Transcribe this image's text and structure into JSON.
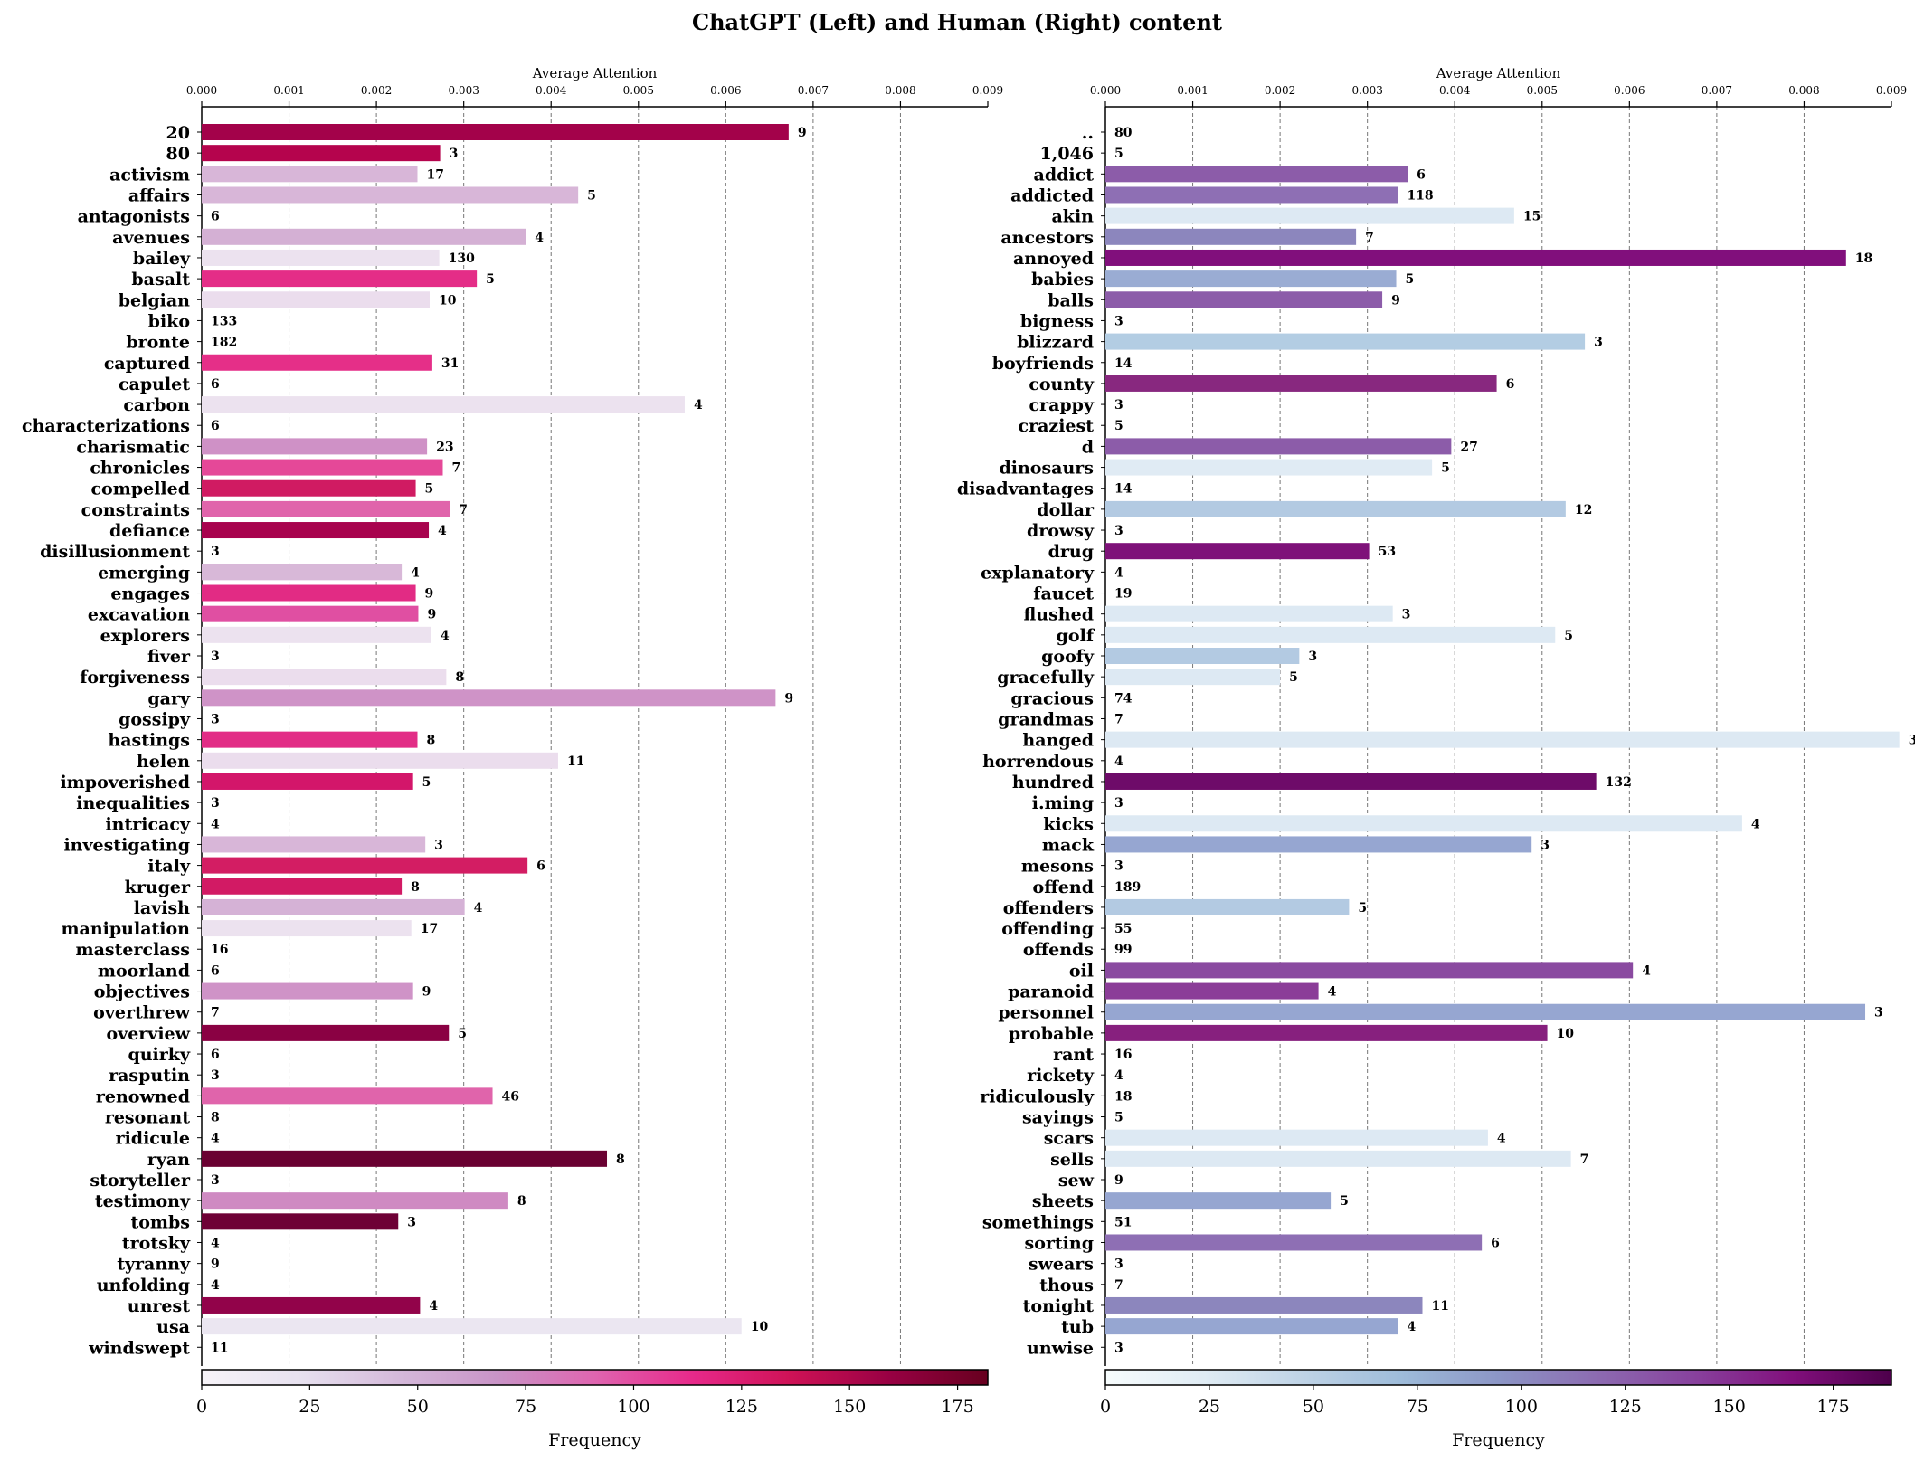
{
  "title": "ChatGPT (Left) and Human (Right) content",
  "chart_data": [
    {
      "type": "bar",
      "orientation": "horizontal",
      "panel": "ChatGPT (Left)",
      "xlabel": "Average Attention",
      "xlim": [
        0,
        0.009
      ],
      "x_ticks": [
        "0.000",
        "0.001",
        "0.002",
        "0.003",
        "0.004",
        "0.005",
        "0.006",
        "0.007",
        "0.008",
        "0.009"
      ],
      "grid": "vertical dashed",
      "colormap": "RdPu",
      "colorbar_label": "Frequency",
      "colorbar_range": [
        0,
        182
      ],
      "colorbar_ticks": [
        "0",
        "25",
        "50",
        "75",
        "100",
        "125",
        "150",
        "175"
      ],
      "categories": [
        "20",
        "80",
        "activism",
        "affairs",
        "antagonists",
        "avenues",
        "bailey",
        "basalt",
        "belgian",
        "biko",
        "bronte",
        "captured",
        "capulet",
        "carbon",
        "characterizations",
        "charismatic",
        "chronicles",
        "compelled",
        "constraints",
        "defiance",
        "disillusionment",
        "emerging",
        "engages",
        "excavation",
        "explorers",
        "fiver",
        "forgiveness",
        "gary",
        "gossipy",
        "hastings",
        "helen",
        "impoverished",
        "inequalities",
        "intricacy",
        "investigating",
        "italy",
        "kruger",
        "lavish",
        "manipulation",
        "masterclass",
        "moorland",
        "objectives",
        "overthrew",
        "overview",
        "quirky",
        "rasputin",
        "renowned",
        "resonant",
        "ridicule",
        "ryan",
        "storyteller",
        "testimony",
        "tombs",
        "trotsky",
        "tyranny",
        "unfolding",
        "unrest",
        "usa",
        "windswept"
      ],
      "values": [
        0.00672,
        0.00273,
        0.00247,
        0.00431,
        0,
        0.00371,
        0.00272,
        0.00315,
        0.00261,
        0,
        0,
        0.00264,
        0,
        0.00553,
        0,
        0.00258,
        0.00276,
        0.00245,
        0.00284,
        0.0026,
        0,
        0.00229,
        0.00245,
        0.00248,
        0.00263,
        0,
        0.0028,
        0.00657,
        0,
        0.00247,
        0.00408,
        0.00242,
        0,
        0,
        0.00256,
        0.00373,
        0.00229,
        0.00301,
        0.0024,
        0,
        0,
        0.00242,
        0,
        0.00283,
        0,
        0,
        0.00333,
        0,
        0,
        0.00464,
        0,
        0.00351,
        0.00225,
        0,
        0,
        0,
        0.0025,
        0.00618,
        0
      ],
      "frequency": [
        9,
        3,
        17,
        5,
        6,
        4,
        130,
        5,
        10,
        133,
        182,
        31,
        6,
        4,
        6,
        23,
        7,
        5,
        7,
        4,
        3,
        4,
        9,
        9,
        4,
        3,
        8,
        9,
        3,
        8,
        11,
        5,
        3,
        4,
        3,
        6,
        8,
        4,
        17,
        16,
        6,
        9,
        7,
        5,
        6,
        3,
        46,
        8,
        4,
        8,
        3,
        8,
        3,
        4,
        9,
        4,
        4,
        10,
        11
      ],
      "bar_colors": [
        "#a3024a",
        "#b5044d",
        "#d8b6d8",
        "#d8b6d8",
        "#dcc0dc",
        "#d4b0d4",
        "#ece2ef",
        "#e42d87",
        "#ebdded",
        "#f1e9f2",
        "#f2eaf3",
        "#e52f88",
        "#eddfee",
        "#ece2ef",
        "#eee4f0",
        "#cf91c6",
        "#e54898",
        "#d01b62",
        "#e064ab",
        "#a8034e",
        "#eee4f0",
        "#d8b8d8",
        "#e22b84",
        "#e04fa2",
        "#ece2ef",
        "#eee4f0",
        "#ebdded",
        "#cf93c7",
        "#eee4f0",
        "#e22d86",
        "#ebdded",
        "#d3166a",
        "#eee4f0",
        "#eee4f0",
        "#d8b6d8",
        "#d31d63",
        "#d21a64",
        "#d5b2d6",
        "#ece2ef",
        "#eee4f0",
        "#eee4f0",
        "#cf93c7",
        "#eee4f0",
        "#8a0143",
        "#eee4f0",
        "#eee4f0",
        "#e064ab",
        "#eee4f0",
        "#eee4f0",
        "#6a0132",
        "#eee4f0",
        "#cf8ac2",
        "#6e0136",
        "#eee4f0",
        "#eee4f0",
        "#eee4f0",
        "#92034a",
        "#ebe6f1",
        "#eee4f0"
      ]
    },
    {
      "type": "bar",
      "orientation": "horizontal",
      "panel": "Human (Right)",
      "xlabel": "Average Attention",
      "xlim": [
        0,
        0.009
      ],
      "x_ticks": [
        "0.000",
        "0.001",
        "0.002",
        "0.003",
        "0.004",
        "0.005",
        "0.006",
        "0.007",
        "0.008",
        "0.009"
      ],
      "grid": "vertical dashed",
      "colormap": "BuPu",
      "colorbar_label": "Frequency",
      "colorbar_range": [
        0,
        189
      ],
      "colorbar_ticks": [
        "0",
        "25",
        "50",
        "75",
        "100",
        "125",
        "150",
        "175"
      ],
      "categories": [
        "..",
        "1,046",
        "addict",
        "addicted",
        "akin",
        "ancestors",
        "annoyed",
        "babies",
        "balls",
        "bigness",
        "blizzard",
        "boyfriends",
        "county",
        "crappy",
        "craziest",
        "d",
        "dinosaurs",
        "disadvantages",
        "dollar",
        "drowsy",
        "drug",
        "explanatory",
        "faucet",
        "flushed",
        "golf",
        "goofy",
        "gracefully",
        "gracious",
        "grandmas",
        "hanged",
        "horrendous",
        "hundred",
        "i.ming",
        "kicks",
        "mack",
        "mesons",
        "offend",
        "offenders",
        "offending",
        "offends",
        "oil",
        "paranoid",
        "personnel",
        "probable",
        "rant",
        "rickety",
        "ridiculously",
        "sayings",
        "scars",
        "sells",
        "sew",
        "sheets",
        "somethings",
        "sorting",
        "swears",
        "thous",
        "tonight",
        "tub",
        "unwise"
      ],
      "values": [
        0,
        0,
        0.00346,
        0.00335,
        0.00468,
        0.00287,
        0.00848,
        0.00333,
        0.00317,
        0,
        0.00549,
        0,
        0.00448,
        0,
        0,
        0.00396,
        0.00374,
        0,
        0.00527,
        0,
        0.00302,
        0,
        0,
        0.00329,
        0.00515,
        0.00222,
        0.002,
        0,
        0,
        0.00909,
        0,
        0.00562,
        0,
        0.00729,
        0.00488,
        0,
        0,
        0.00279,
        0,
        0,
        0.00604,
        0.00244,
        0.0087,
        0.00506,
        0,
        0,
        0,
        0,
        0.00438,
        0.00533,
        0,
        0.00258,
        0,
        0.00431,
        0,
        0,
        0.00363,
        0.00335,
        0
      ],
      "frequency": [
        80,
        5,
        6,
        118,
        15,
        7,
        18,
        5,
        9,
        3,
        3,
        14,
        6,
        3,
        5,
        27,
        5,
        14,
        12,
        3,
        53,
        4,
        19,
        3,
        5,
        3,
        5,
        74,
        7,
        3,
        4,
        132,
        3,
        4,
        3,
        3,
        189,
        5,
        55,
        99,
        4,
        4,
        3,
        10,
        16,
        4,
        18,
        5,
        4,
        7,
        9,
        5,
        51,
        6,
        3,
        7,
        11,
        4,
        3
      ],
      "bar_colors": [
        "#e6eef6",
        "#e6eef6",
        "#8c5ca9",
        "#8e6fb4",
        "#dde9f3",
        "#8c86bd",
        "#810f7c",
        "#9aacd3",
        "#8c5ca9",
        "#e6eef6",
        "#b3cde3",
        "#e6eef6",
        "#88287f",
        "#e6eef6",
        "#e6eef6",
        "#8c5ca9",
        "#e0ebf4",
        "#e6eef6",
        "#b3cae2",
        "#e6eef6",
        "#7e1279",
        "#e6eef6",
        "#e6eef6",
        "#dde9f3",
        "#dde9f3",
        "#b3cae2",
        "#dde9f3",
        "#e6eef6",
        "#e6eef6",
        "#dde9f3",
        "#e6eef6",
        "#6e0b69",
        "#e6eef6",
        "#dde9f3",
        "#96a6d1",
        "#e6eef6",
        "#e6eef6",
        "#b3cae2",
        "#e6eef6",
        "#e6eef6",
        "#8a4aa0",
        "#8b3d98",
        "#96a6d1",
        "#87207e",
        "#e6eef6",
        "#e6eef6",
        "#e6eef6",
        "#e6eef6",
        "#dde9f3",
        "#dde9f3",
        "#e6eef6",
        "#96a6d1",
        "#e6eef6",
        "#8e6fb4",
        "#e6eef6",
        "#e6eef6",
        "#8c86bd",
        "#96a6d1",
        "#e6eef6"
      ],
      "colormap_stops": [
        "#f7fcfd",
        "#e0ecf4",
        "#bfd3e6",
        "#9ebcda",
        "#8c96c6",
        "#8c6bb1",
        "#88419d",
        "#810f7c",
        "#4d004b"
      ]
    }
  ],
  "left_colormap_stops": [
    "#f7f4f9",
    "#e7e1ef",
    "#d4b9da",
    "#c994c7",
    "#df65b0",
    "#e7298a",
    "#ce1256",
    "#980043",
    "#67001f"
  ]
}
